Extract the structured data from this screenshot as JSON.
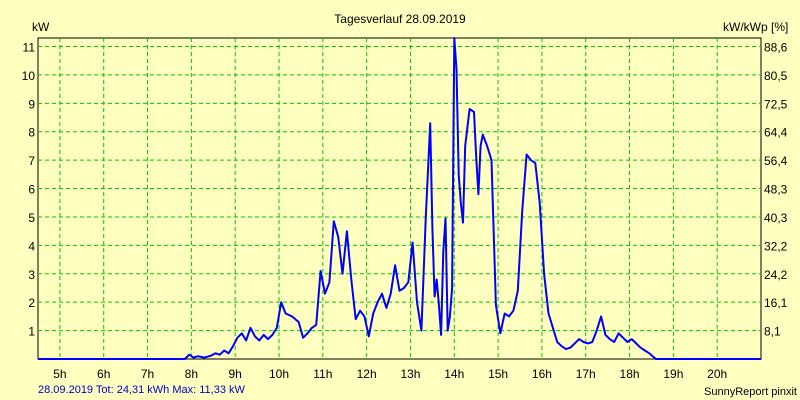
{
  "chart_data": {
    "type": "line",
    "title": "Tagesverlauf 28.09.2019",
    "ylabel_left": "kW",
    "ylabel_right": "kW/kWp [%]",
    "x_tick_labels": [
      "5h",
      "6h",
      "7h",
      "8h",
      "9h",
      "10h",
      "11h",
      "12h",
      "13h",
      "14h",
      "15h",
      "16h",
      "17h",
      "18h",
      "19h",
      "20h"
    ],
    "y_left_ticks": [
      "1",
      "2",
      "3",
      "4",
      "5",
      "6",
      "7",
      "8",
      "9",
      "10",
      "11"
    ],
    "y_right_ticks": [
      "8,1",
      "16,1",
      "24,2",
      "32,2",
      "40,3",
      "48,3",
      "56,4",
      "64,4",
      "72,5",
      "80,5",
      "88,6"
    ],
    "xlim": [
      4.5,
      21.0
    ],
    "ylim": [
      0,
      11.3
    ],
    "grid": true,
    "series": [
      {
        "color": "#0000ff",
        "x": [
          4.5,
          7.5,
          7.85,
          7.95,
          8.05,
          8.15,
          8.3,
          8.45,
          8.55,
          8.65,
          8.75,
          8.85,
          8.95,
          9.05,
          9.15,
          9.25,
          9.35,
          9.45,
          9.55,
          9.65,
          9.75,
          9.85,
          9.95,
          10.05,
          10.15,
          10.3,
          10.45,
          10.55,
          10.65,
          10.75,
          10.85,
          10.95,
          11.05,
          11.15,
          11.25,
          11.35,
          11.45,
          11.55,
          11.65,
          11.75,
          11.85,
          11.95,
          12.05,
          12.15,
          12.25,
          12.35,
          12.45,
          12.55,
          12.65,
          12.75,
          12.85,
          12.95,
          13.05,
          13.15,
          13.25,
          13.35,
          13.45,
          13.5,
          13.55,
          13.6,
          13.65,
          13.7,
          13.75,
          13.8,
          13.85,
          13.9,
          13.95,
          14.0,
          14.05,
          14.1,
          14.15,
          14.2,
          14.25,
          14.35,
          14.45,
          14.5,
          14.55,
          14.6,
          14.65,
          14.75,
          14.85,
          14.95,
          15.05,
          15.15,
          15.25,
          15.35,
          15.45,
          15.55,
          15.65,
          15.75,
          15.85,
          15.95,
          16.05,
          16.15,
          16.25,
          16.35,
          16.45,
          16.55,
          16.65,
          16.75,
          16.85,
          16.95,
          17.05,
          17.15,
          17.25,
          17.35,
          17.45,
          17.55,
          17.65,
          17.75,
          17.85,
          17.95,
          18.05,
          18.15,
          18.25,
          18.35,
          18.45,
          18.6,
          21.0
        ],
        "values": [
          0,
          0,
          0,
          0.15,
          0.05,
          0.1,
          0.05,
          0.12,
          0.2,
          0.15,
          0.3,
          0.2,
          0.45,
          0.75,
          0.9,
          0.65,
          1.1,
          0.8,
          0.65,
          0.85,
          0.7,
          0.85,
          1.1,
          2.0,
          1.6,
          1.5,
          1.3,
          0.75,
          0.9,
          1.1,
          1.2,
          3.1,
          2.3,
          2.7,
          4.85,
          4.3,
          3.0,
          4.5,
          2.8,
          1.4,
          1.7,
          1.5,
          0.8,
          1.6,
          2.0,
          2.3,
          1.8,
          2.3,
          3.3,
          2.4,
          2.5,
          2.7,
          4.1,
          2.0,
          1.0,
          5.0,
          8.3,
          4.6,
          2.2,
          2.8,
          1.9,
          0.85,
          3.8,
          4.95,
          1.0,
          1.5,
          2.5,
          11.3,
          10.2,
          6.5,
          5.5,
          4.8,
          7.5,
          8.8,
          8.7,
          7.1,
          5.8,
          7.5,
          7.9,
          7.5,
          7.0,
          1.9,
          0.9,
          1.6,
          1.5,
          1.7,
          2.4,
          5.2,
          7.2,
          7.0,
          6.9,
          5.5,
          3.0,
          1.6,
          1.1,
          0.6,
          0.45,
          0.35,
          0.4,
          0.55,
          0.7,
          0.6,
          0.55,
          0.6,
          1.0,
          1.5,
          0.85,
          0.7,
          0.6,
          0.9,
          0.75,
          0.6,
          0.7,
          0.55,
          0.4,
          0.3,
          0.2,
          0,
          0
        ]
      }
    ],
    "footer_left": "28.09.2019 Tot: 24,31 kWh Max: 11,33 kW",
    "footer_right": "SunnyReport pinxit"
  }
}
